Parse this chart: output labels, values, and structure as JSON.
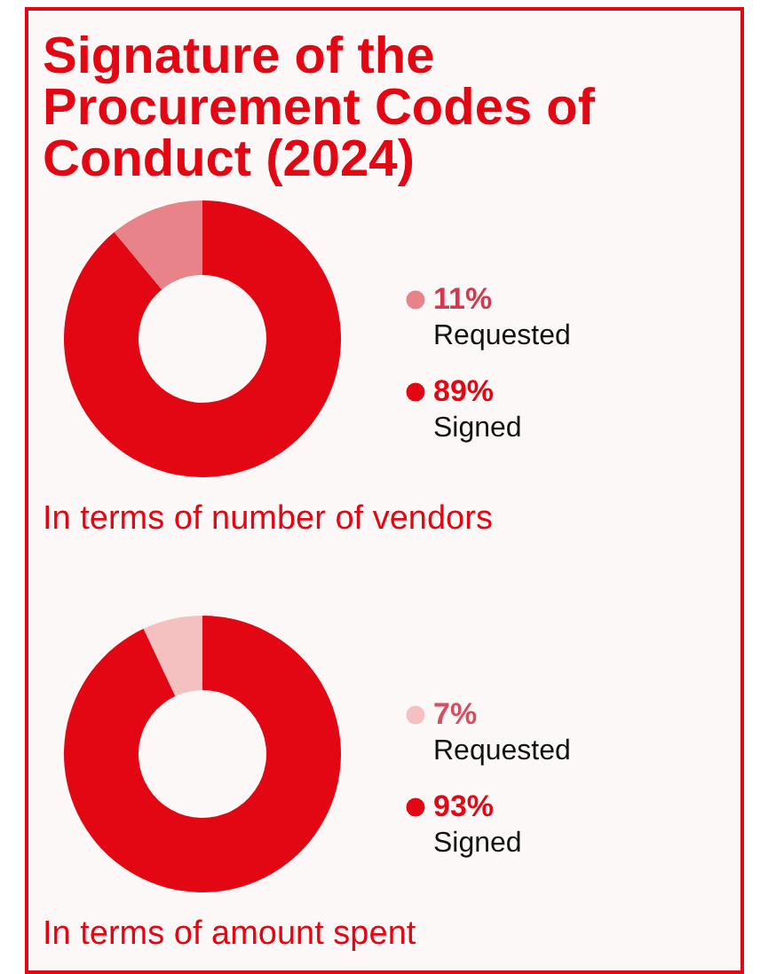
{
  "chart_data": [
    {
      "type": "donut",
      "title": "Signature of the Procurement Codes of Conduct (2024)",
      "subtitle": "In terms of number of vendors",
      "categories": [
        "Requested",
        "Signed"
      ],
      "values": [
        11,
        89
      ],
      "colors": [
        "#e9838a",
        "#e30613"
      ],
      "value_labels": [
        "11%",
        "89%"
      ],
      "legend": "right"
    },
    {
      "type": "donut",
      "subtitle": "In terms of amount spent",
      "categories": [
        "Requested",
        "Signed"
      ],
      "values": [
        7,
        93
      ],
      "colors": [
        "#f5c0c0",
        "#e30613"
      ],
      "value_labels": [
        "7%",
        "93%"
      ],
      "legend": "right"
    }
  ]
}
